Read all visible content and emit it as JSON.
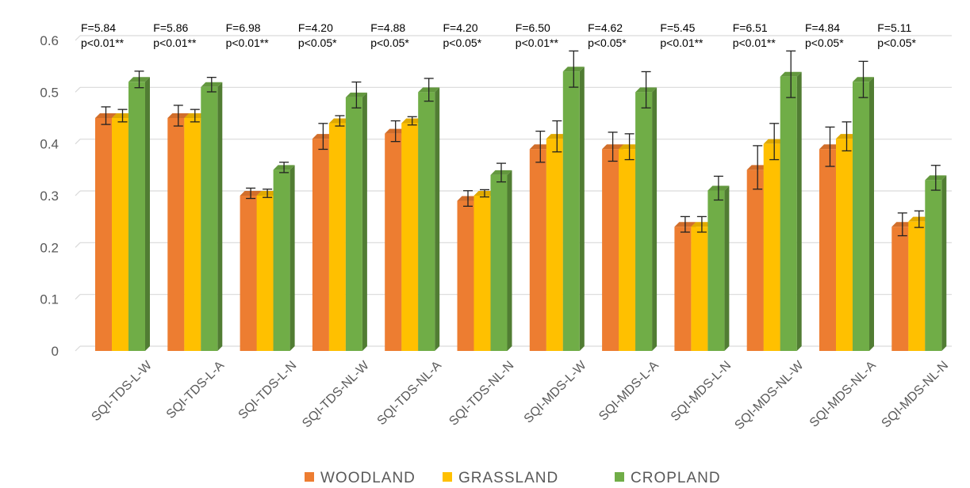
{
  "colors": {
    "woodland": "#ED7D31",
    "grassland": "#FFC000",
    "cropland": "#70AD47",
    "gridline": "#D9D9D9",
    "text": "#595959"
  },
  "chart_data": {
    "type": "bar",
    "title": "",
    "xlabel": "",
    "ylabel": "",
    "ylim": [
      0,
      0.6
    ],
    "yticks": [
      "0",
      "0.1",
      "0.2",
      "0.3",
      "0.4",
      "0.5",
      "0.6"
    ],
    "grid": true,
    "legend_position": "bottom",
    "categories": [
      "SQI-TDS-L-W",
      "SQI-TDS-L-A",
      "SQI-TDS-L-N",
      "SQI-TDS-NL-W",
      "SQI-TDS-NL-A",
      "SQI-TDS-NL-N",
      "SQI-MDS-L-W",
      "SQI-MDS-L-A",
      "SQI-MDS-L-N",
      "SQI-MDS-NL-W",
      "SQI-MDS-NL-A",
      "SQI-MDS-NL-N"
    ],
    "series": [
      {
        "name": "WOODLAND",
        "color": "#ED7D31",
        "values": [
          0.45,
          0.45,
          0.3,
          0.41,
          0.42,
          0.29,
          0.39,
          0.39,
          0.24,
          0.35,
          0.39,
          0.24
        ],
        "errors": [
          0.017,
          0.02,
          0.01,
          0.025,
          0.02,
          0.015,
          0.03,
          0.028,
          0.015,
          0.042,
          0.038,
          0.022
        ]
      },
      {
        "name": "GRASSLAND",
        "color": "#FFC000",
        "values": [
          0.45,
          0.45,
          0.3,
          0.44,
          0.44,
          0.3,
          0.41,
          0.39,
          0.24,
          0.4,
          0.41,
          0.25
        ],
        "errors": [
          0.012,
          0.012,
          0.008,
          0.01,
          0.008,
          0.007,
          0.03,
          0.025,
          0.015,
          0.035,
          0.028,
          0.016
        ]
      },
      {
        "name": "CROPLAND",
        "color": "#70AD47",
        "values": [
          0.52,
          0.51,
          0.35,
          0.49,
          0.5,
          0.34,
          0.54,
          0.5,
          0.31,
          0.53,
          0.52,
          0.33
        ],
        "errors": [
          0.016,
          0.014,
          0.01,
          0.025,
          0.022,
          0.018,
          0.035,
          0.035,
          0.023,
          0.045,
          0.035,
          0.024
        ]
      }
    ],
    "annotations": [
      {
        "f": "F=5.84",
        "p": "p<0.01**"
      },
      {
        "f": "F=5.86",
        "p": "p<0.01**"
      },
      {
        "f": "F=6.98",
        "p": "p<0.01**"
      },
      {
        "f": "F=4.20",
        "p": "p<0.05*"
      },
      {
        "f": "F=4.88",
        "p": "p<0.05*"
      },
      {
        "f": "F=4.20",
        "p": "p<0.05*"
      },
      {
        "f": "F=6.50",
        "p": "p<0.01**"
      },
      {
        "f": "F=4.62",
        "p": "p<0.05*"
      },
      {
        "f": "F=5.45",
        "p": "p<0.01**"
      },
      {
        "f": "F=6.51",
        "p": "p<0.01**"
      },
      {
        "f": "F=4.84",
        "p": "p<0.05*"
      },
      {
        "f": "F=5.11",
        "p": "p<0.05*"
      }
    ]
  }
}
